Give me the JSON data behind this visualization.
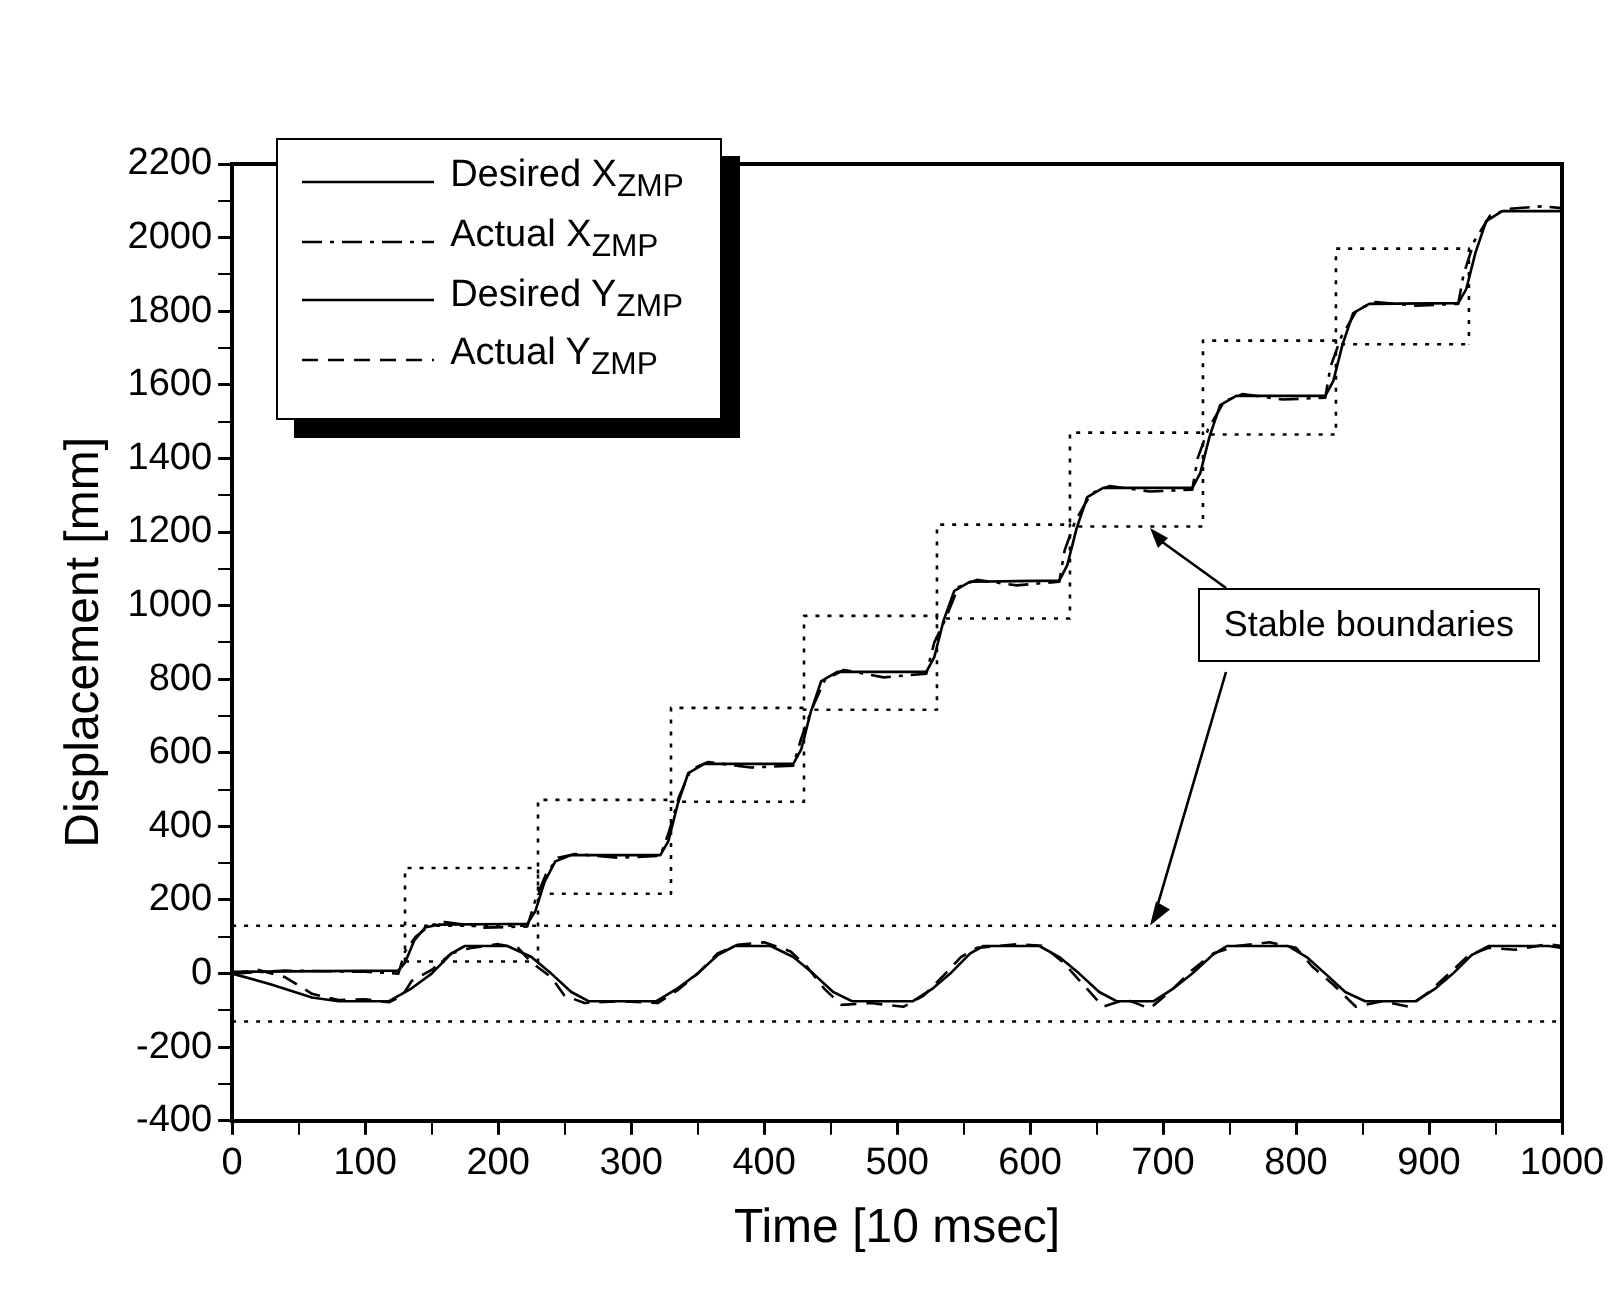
{
  "chart_data": {
    "type": "line",
    "xlabel": "Time [10 msec]",
    "ylabel": "Displacement [mm]",
    "xlim": [
      0,
      1000
    ],
    "ylim": [
      -400,
      2200
    ],
    "xticks": [
      0,
      {
        "value": 50,
        "label": null
      },
      100,
      {
        "value": 150,
        "label": null
      },
      200,
      {
        "value": 250,
        "label": null
      },
      300,
      {
        "value": 350,
        "label": null
      },
      400,
      {
        "value": 450,
        "label": null
      },
      500,
      {
        "value": 550,
        "label": null
      },
      600,
      {
        "value": 650,
        "label": null
      },
      700,
      {
        "value": 750,
        "label": null
      },
      800,
      {
        "value": 850,
        "label": null
      },
      900,
      {
        "value": 950,
        "label": null
      },
      1000
    ],
    "yticks": [
      -400,
      {
        "value": -300,
        "label": null
      },
      -200,
      {
        "value": -100,
        "label": null
      },
      0,
      {
        "value": 100,
        "label": null
      },
      200,
      {
        "value": 300,
        "label": null
      },
      400,
      {
        "value": 500,
        "label": null
      },
      600,
      {
        "value": 700,
        "label": null
      },
      800,
      {
        "value": 900,
        "label": null
      },
      1000,
      {
        "value": 1100,
        "label": null
      },
      1200,
      {
        "value": 1300,
        "label": null
      },
      1400,
      {
        "value": 1500,
        "label": null
      },
      1600,
      {
        "value": 1700,
        "label": null
      },
      1800,
      {
        "value": 1900,
        "label": null
      },
      2000,
      {
        "value": 2100,
        "label": null
      },
      2200
    ],
    "grid": false,
    "legend": "top left",
    "marker": "none",
    "series": [
      {
        "name": "Desired X$_{ZMP}$",
        "color": "#000000",
        "line_style": "solid",
        "x": [
          0,
          125,
          130,
          137,
          145,
          155,
          222,
          228,
          235,
          243,
          255,
          322,
          328,
          335,
          343,
          355,
          422,
          428,
          435,
          443,
          455,
          522,
          528,
          535,
          543,
          555,
          622,
          628,
          635,
          643,
          655,
          722,
          728,
          735,
          743,
          755,
          822,
          828,
          835,
          843,
          855,
          922,
          928,
          935,
          943,
          955,
          1000
        ],
        "values": [
          5,
          8,
          30,
          90,
          125,
          133,
          135,
          170,
          250,
          305,
          322,
          322,
          360,
          460,
          545,
          570,
          570,
          610,
          710,
          795,
          820,
          820,
          860,
          960,
          1040,
          1065,
          1068,
          1110,
          1210,
          1295,
          1320,
          1320,
          1360,
          1460,
          1545,
          1570,
          1570,
          1610,
          1710,
          1795,
          1820,
          1822,
          1860,
          1960,
          2045,
          2072,
          2072
        ]
      },
      {
        "name": "Actual X$_{ZMP}$",
        "color": "#000000",
        "line_style": "dashdot",
        "x": [
          0,
          40,
          100,
          125,
          130,
          138,
          148,
          160,
          190,
          222,
          228,
          236,
          245,
          258,
          290,
          322,
          328,
          336,
          345,
          358,
          390,
          422,
          428,
          436,
          446,
          460,
          490,
          522,
          528,
          536,
          546,
          560,
          590,
          622,
          626,
          634,
          646,
          660,
          690,
          722,
          726,
          734,
          746,
          760,
          790,
          822,
          826,
          834,
          846,
          860,
          890,
          922,
          926,
          934,
          946,
          960,
          985,
          1000
        ],
        "values": [
          0,
          8,
          5,
          0,
          60,
          100,
          130,
          140,
          125,
          128,
          200,
          270,
          315,
          325,
          315,
          320,
          380,
          480,
          555,
          575,
          560,
          565,
          640,
          720,
          800,
          825,
          805,
          815,
          900,
          960,
          1050,
          1070,
          1055,
          1065,
          1150,
          1230,
          1305,
          1325,
          1310,
          1315,
          1400,
          1480,
          1555,
          1575,
          1560,
          1565,
          1650,
          1730,
          1805,
          1825,
          1815,
          1820,
          1900,
          1990,
          2060,
          2078,
          2085,
          2080
        ]
      },
      {
        "name": "Desired Y$_{ZMP}$",
        "color": "#000000",
        "line_style": "solid",
        "x": [
          0,
          30,
          60,
          80,
          118,
          135,
          150,
          165,
          175,
          207,
          225,
          240,
          255,
          268,
          319,
          335,
          350,
          365,
          378,
          405,
          422,
          437,
          452,
          466,
          512,
          527,
          540,
          555,
          565,
          607,
          622,
          637,
          652,
          665,
          693,
          708,
          722,
          737,
          748,
          794,
          808,
          822,
          837,
          852,
          890,
          905,
          918,
          932,
          945,
          990,
          1000
        ],
        "values": [
          0,
          -30,
          -65,
          -75,
          -75,
          -40,
          0,
          55,
          75,
          75,
          45,
          0,
          -50,
          -75,
          -75,
          -40,
          0,
          50,
          75,
          75,
          45,
          0,
          -50,
          -75,
          -75,
          -40,
          0,
          55,
          75,
          75,
          45,
          0,
          -50,
          -75,
          -75,
          -40,
          0,
          50,
          75,
          75,
          45,
          0,
          -50,
          -75,
          -75,
          -40,
          0,
          50,
          75,
          75,
          70
        ]
      },
      {
        "name": "Actual Y$_{ZMP}$",
        "color": "#000000",
        "line_style": "dashed",
        "x": [
          0,
          20,
          40,
          60,
          80,
          100,
          118,
          128,
          135,
          150,
          165,
          180,
          200,
          215,
          225,
          240,
          250,
          265,
          290,
          320,
          335,
          350,
          365,
          380,
          400,
          420,
          432,
          445,
          458,
          480,
          505,
          520,
          535,
          548,
          560,
          590,
          610,
          625,
          640,
          655,
          672,
          690,
          705,
          722,
          738,
          755,
          780,
          800,
          812,
          828,
          845,
          865,
          885,
          900,
          915,
          930,
          945,
          965,
          990,
          1000
        ],
        "values": [
          0,
          10,
          -10,
          -55,
          -72,
          -70,
          -78,
          -60,
          -20,
          10,
          55,
          70,
          80,
          70,
          30,
          -10,
          -60,
          -80,
          -75,
          -80,
          -45,
          0,
          55,
          78,
          85,
          60,
          20,
          -40,
          -85,
          -80,
          -90,
          -60,
          -5,
          45,
          70,
          80,
          75,
          30,
          -30,
          -90,
          -70,
          -95,
          -50,
          10,
          55,
          75,
          85,
          70,
          20,
          -30,
          -90,
          -75,
          -90,
          -50,
          0,
          50,
          70,
          65,
          80,
          75
        ]
      },
      {
        "color": "#000000",
        "line_style": "dotted",
        "x": [
          130,
          130,
          230,
          230,
          330,
          330,
          430,
          430,
          530,
          530,
          630,
          630,
          730,
          730,
          830,
          830,
          930,
          930
        ],
        "values": [
          33,
          287,
          287,
          472,
          472,
          722,
          722,
          972,
          972,
          1220,
          1220,
          1470,
          1470,
          1720,
          1720,
          1970,
          1970,
          1710
        ]
      },
      {
        "color": "#000000",
        "line_style": "dotted",
        "x": [
          130,
          230,
          230,
          230,
          330,
          330,
          330,
          430,
          430,
          430,
          530,
          530,
          530,
          630,
          630,
          630,
          730,
          730,
          730,
          830,
          830,
          830,
          930
        ],
        "values": [
          33,
          33,
          287,
          217,
          217,
          472,
          467,
          467,
          722,
          717,
          717,
          972,
          965,
          965,
          1220,
          1215,
          1215,
          1470,
          1465,
          1465,
          1720,
          1710,
          1710
        ]
      }
    ],
    "ref_lines": [
      {
        "axis": "y",
        "value": 130,
        "color": "#000000",
        "line_style": "dotted"
      },
      {
        "axis": "y",
        "value": -130,
        "color": "#000000",
        "line_style": "dotted"
      }
    ],
    "annotations": [
      {
        "text": "Stable boundaries",
        "x": 690,
        "y": 1210
      }
    ]
  }
}
